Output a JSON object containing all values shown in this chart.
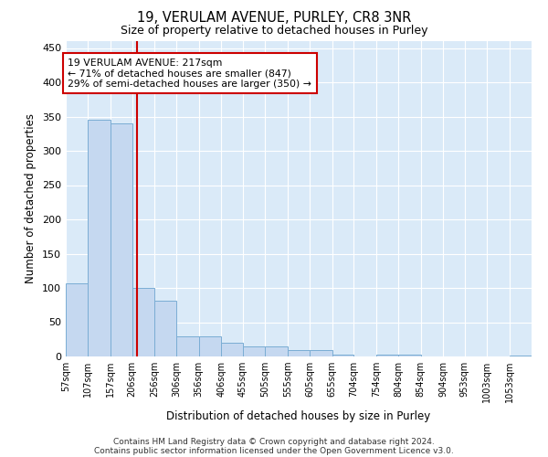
{
  "title": "19, VERULAM AVENUE, PURLEY, CR8 3NR",
  "subtitle": "Size of property relative to detached houses in Purley",
  "xlabel": "Distribution of detached houses by size in Purley",
  "ylabel": "Number of detached properties",
  "bar_color": "#c5d8f0",
  "bar_edge_color": "#7aadd4",
  "background_color": "#daeaf8",
  "grid_color": "#ffffff",
  "property_size": 217,
  "property_line_color": "#cc0000",
  "annotation_text": "19 VERULAM AVENUE: 217sqm\n← 71% of detached houses are smaller (847)\n29% of semi-detached houses are larger (350) →",
  "annotation_box_color": "#ffffff",
  "annotation_box_edge_color": "#cc0000",
  "categories": [
    "57sqm",
    "107sqm",
    "157sqm",
    "206sqm",
    "256sqm",
    "306sqm",
    "356sqm",
    "406sqm",
    "455sqm",
    "505sqm",
    "555sqm",
    "605sqm",
    "655sqm",
    "704sqm",
    "754sqm",
    "804sqm",
    "854sqm",
    "904sqm",
    "953sqm",
    "1003sqm",
    "1053sqm"
  ],
  "bin_edges": [
    57,
    107,
    157,
    206,
    256,
    306,
    356,
    406,
    455,
    505,
    555,
    605,
    655,
    704,
    754,
    804,
    854,
    904,
    953,
    1003,
    1053,
    1103
  ],
  "values": [
    107,
    345,
    340,
    100,
    82,
    30,
    30,
    20,
    15,
    15,
    10,
    10,
    3,
    0,
    3,
    3,
    0,
    0,
    0,
    0,
    2
  ],
  "ylim": [
    0,
    460
  ],
  "yticks": [
    0,
    50,
    100,
    150,
    200,
    250,
    300,
    350,
    400,
    450
  ],
  "footer_line1": "Contains HM Land Registry data © Crown copyright and database right 2024.",
  "footer_line2": "Contains public sector information licensed under the Open Government Licence v3.0."
}
